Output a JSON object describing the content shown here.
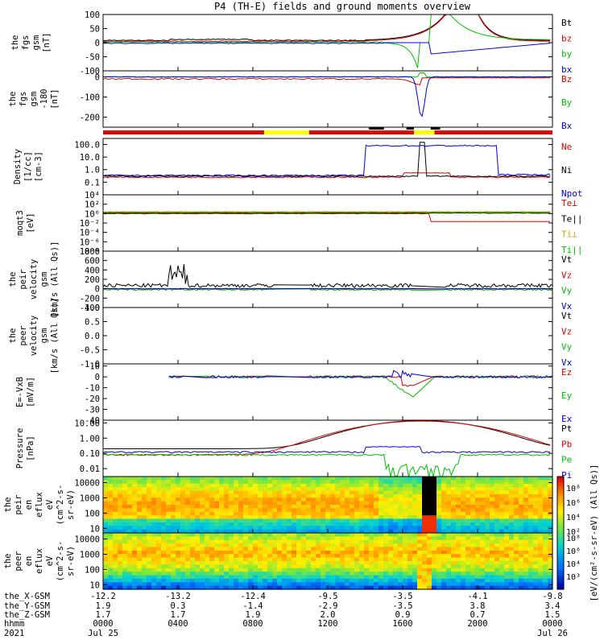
{
  "title": "P4 (TH-E) fields and ground moments overview",
  "colors": {
    "black": "#000000",
    "red": "#e00000",
    "green": "#00c000",
    "blue": "#0000e0",
    "yellow": "#ffff00"
  },
  "chart_data": [
    {
      "type": "line",
      "ylabel": [
        "the",
        "fgs",
        "gsm",
        "[nT]"
      ],
      "ylim": [
        -100,
        100
      ],
      "yticks": [
        100,
        50,
        0,
        -50,
        -100
      ],
      "series": [
        {
          "name": "Bt",
          "color": "#000000"
        },
        {
          "name": "bz",
          "color": "#e00000"
        },
        {
          "name": "by",
          "color": "#00c000"
        },
        {
          "name": "bx",
          "color": "#0000e0"
        }
      ]
    },
    {
      "type": "line",
      "ylabel": [
        "the",
        "fgs",
        "gsm",
        "-180",
        "[nT]"
      ],
      "ylim": [
        -250,
        30
      ],
      "yticks": [
        0,
        -100,
        -200
      ],
      "series": [
        {
          "name": "Bz",
          "color": "#e00000"
        },
        {
          "name": "By",
          "color": "#00c000"
        },
        {
          "name": "Bx",
          "color": "#0000e0"
        }
      ]
    },
    {
      "type": "line",
      "ylabel": [
        "Density",
        "[1/cc]",
        "[cm-3]"
      ],
      "yscale": "log",
      "ylim": [
        0.01,
        300
      ],
      "yticks": [
        "100.0",
        "10.0",
        "1.0",
        "0.1"
      ],
      "series": [
        {
          "name": "Ne",
          "color": "#e00000"
        },
        {
          "name": "Ni",
          "color": "#000000"
        },
        {
          "name": "Npot",
          "color": "#0000e0"
        }
      ]
    },
    {
      "type": "line",
      "ylabel": [
        "moqt3",
        "[eV]"
      ],
      "yscale": "log",
      "ylim": [
        1e-08,
        10000
      ],
      "yticks": [
        "10⁴",
        "10²",
        "10⁰",
        "10⁻²",
        "10⁻⁴",
        "10⁻⁶",
        "10⁻⁸"
      ],
      "series": [
        {
          "name": "Te⊥",
          "color": "#e00000"
        },
        {
          "name": "Te||",
          "color": "#000000"
        },
        {
          "name": "Ti⊥",
          "color": "#e0a000"
        },
        {
          "name": "Ti||",
          "color": "#00c000"
        }
      ]
    },
    {
      "type": "line",
      "ylabel": [
        "the",
        "peir",
        "velocity",
        "gsm",
        "[km/s (All Qs)]"
      ],
      "ylim": [
        -400,
        800
      ],
      "yticks": [
        800,
        600,
        400,
        200,
        0,
        -200,
        -400
      ],
      "series": [
        {
          "name": "Vt",
          "color": "#000000"
        },
        {
          "name": "Vz",
          "color": "#e00000"
        },
        {
          "name": "Vy",
          "color": "#00c000"
        },
        {
          "name": "Vx",
          "color": "#0000e0"
        }
      ]
    },
    {
      "type": "line",
      "ylabel": [
        "the",
        "peer",
        "velocity",
        "gsm",
        "[km/s (All Qs)]"
      ],
      "ylim": [
        -1,
        1
      ],
      "yticks": [
        "1.0",
        "0.5",
        "0.0",
        "-0.5",
        "-1.0"
      ],
      "series": [
        {
          "name": "Vt",
          "color": "#000000"
        },
        {
          "name": "Vz",
          "color": "#e00000"
        },
        {
          "name": "Vy",
          "color": "#00c000"
        },
        {
          "name": "Vx",
          "color": "#0000e0"
        }
      ]
    },
    {
      "type": "line",
      "ylabel": [
        "E=-VxB",
        "[mV/m]"
      ],
      "ylim": [
        -40,
        12
      ],
      "yticks": [
        10,
        0,
        -10,
        -20,
        -30,
        -40
      ],
      "series": [
        {
          "name": "Ez",
          "color": "#e00000"
        },
        {
          "name": "Ey",
          "color": "#00c000"
        },
        {
          "name": "Ex",
          "color": "#0000e0"
        }
      ]
    },
    {
      "type": "line",
      "ylabel": [
        "Pressure",
        "[nPa]"
      ],
      "yscale": "log",
      "ylim": [
        0.003,
        15
      ],
      "yticks": [
        "10.00",
        "1.00",
        "0.10",
        "0.01"
      ],
      "series": [
        {
          "name": "Pt",
          "color": "#000000"
        },
        {
          "name": "Pb",
          "color": "#e00000"
        },
        {
          "name": "Pe",
          "color": "#00c000"
        },
        {
          "name": "Pi",
          "color": "#0000e0"
        }
      ]
    },
    {
      "type": "heatmap",
      "ylabel": [
        "the",
        "peir",
        "en",
        "eflux",
        "eV",
        "(cm^2-s-",
        "sr-eV)"
      ],
      "yscale": "log",
      "ylim": [
        5,
        25000
      ],
      "yticks": [
        "10000",
        "1000",
        "100",
        "10"
      ]
    },
    {
      "type": "heatmap",
      "ylabel": [
        "the",
        "peer",
        "en",
        "eflux",
        "eV",
        "(cm^2-s-",
        "sr-eV)"
      ],
      "yscale": "log",
      "ylim": [
        5,
        25000
      ],
      "yticks": [
        "10000",
        "1000",
        "100",
        "10"
      ]
    }
  ],
  "colorbar": {
    "label": "[eV/(cm²-s-sr-eV) (All Qs)]",
    "ticks_top": [
      "10⁸",
      "10⁶",
      "10⁴",
      "10²"
    ],
    "ticks_bottom": [
      "10⁸",
      "10⁶",
      "10⁴",
      "10³"
    ]
  },
  "xaxis": {
    "row_labels": [
      "the_X-GSM",
      "the_Y-GSM",
      "the_Z-GSM",
      "hhmm",
      "2021"
    ],
    "ticks": [
      {
        "x": "-12.2",
        "y": "1.9",
        "z": "1.7",
        "hhmm": "0000",
        "date": "Jul 25"
      },
      {
        "x": "-13.2",
        "y": "0.3",
        "z": "1.7",
        "hhmm": "0400",
        "date": ""
      },
      {
        "x": "-12.4",
        "y": "-1.4",
        "z": "1.9",
        "hhmm": "0800",
        "date": ""
      },
      {
        "x": "-9.5",
        "y": "-2.9",
        "z": "2.0",
        "hhmm": "1200",
        "date": ""
      },
      {
        "x": "-3.5",
        "y": "-3.5",
        "z": "0.9",
        "hhmm": "1600",
        "date": ""
      },
      {
        "x": "-4.1",
        "y": "3.8",
        "z": "0.7",
        "hhmm": "2000",
        "date": ""
      },
      {
        "x": "-9.8",
        "y": "3.4",
        "z": "1.5",
        "hhmm": "0000",
        "date": "Jul 26"
      }
    ]
  }
}
